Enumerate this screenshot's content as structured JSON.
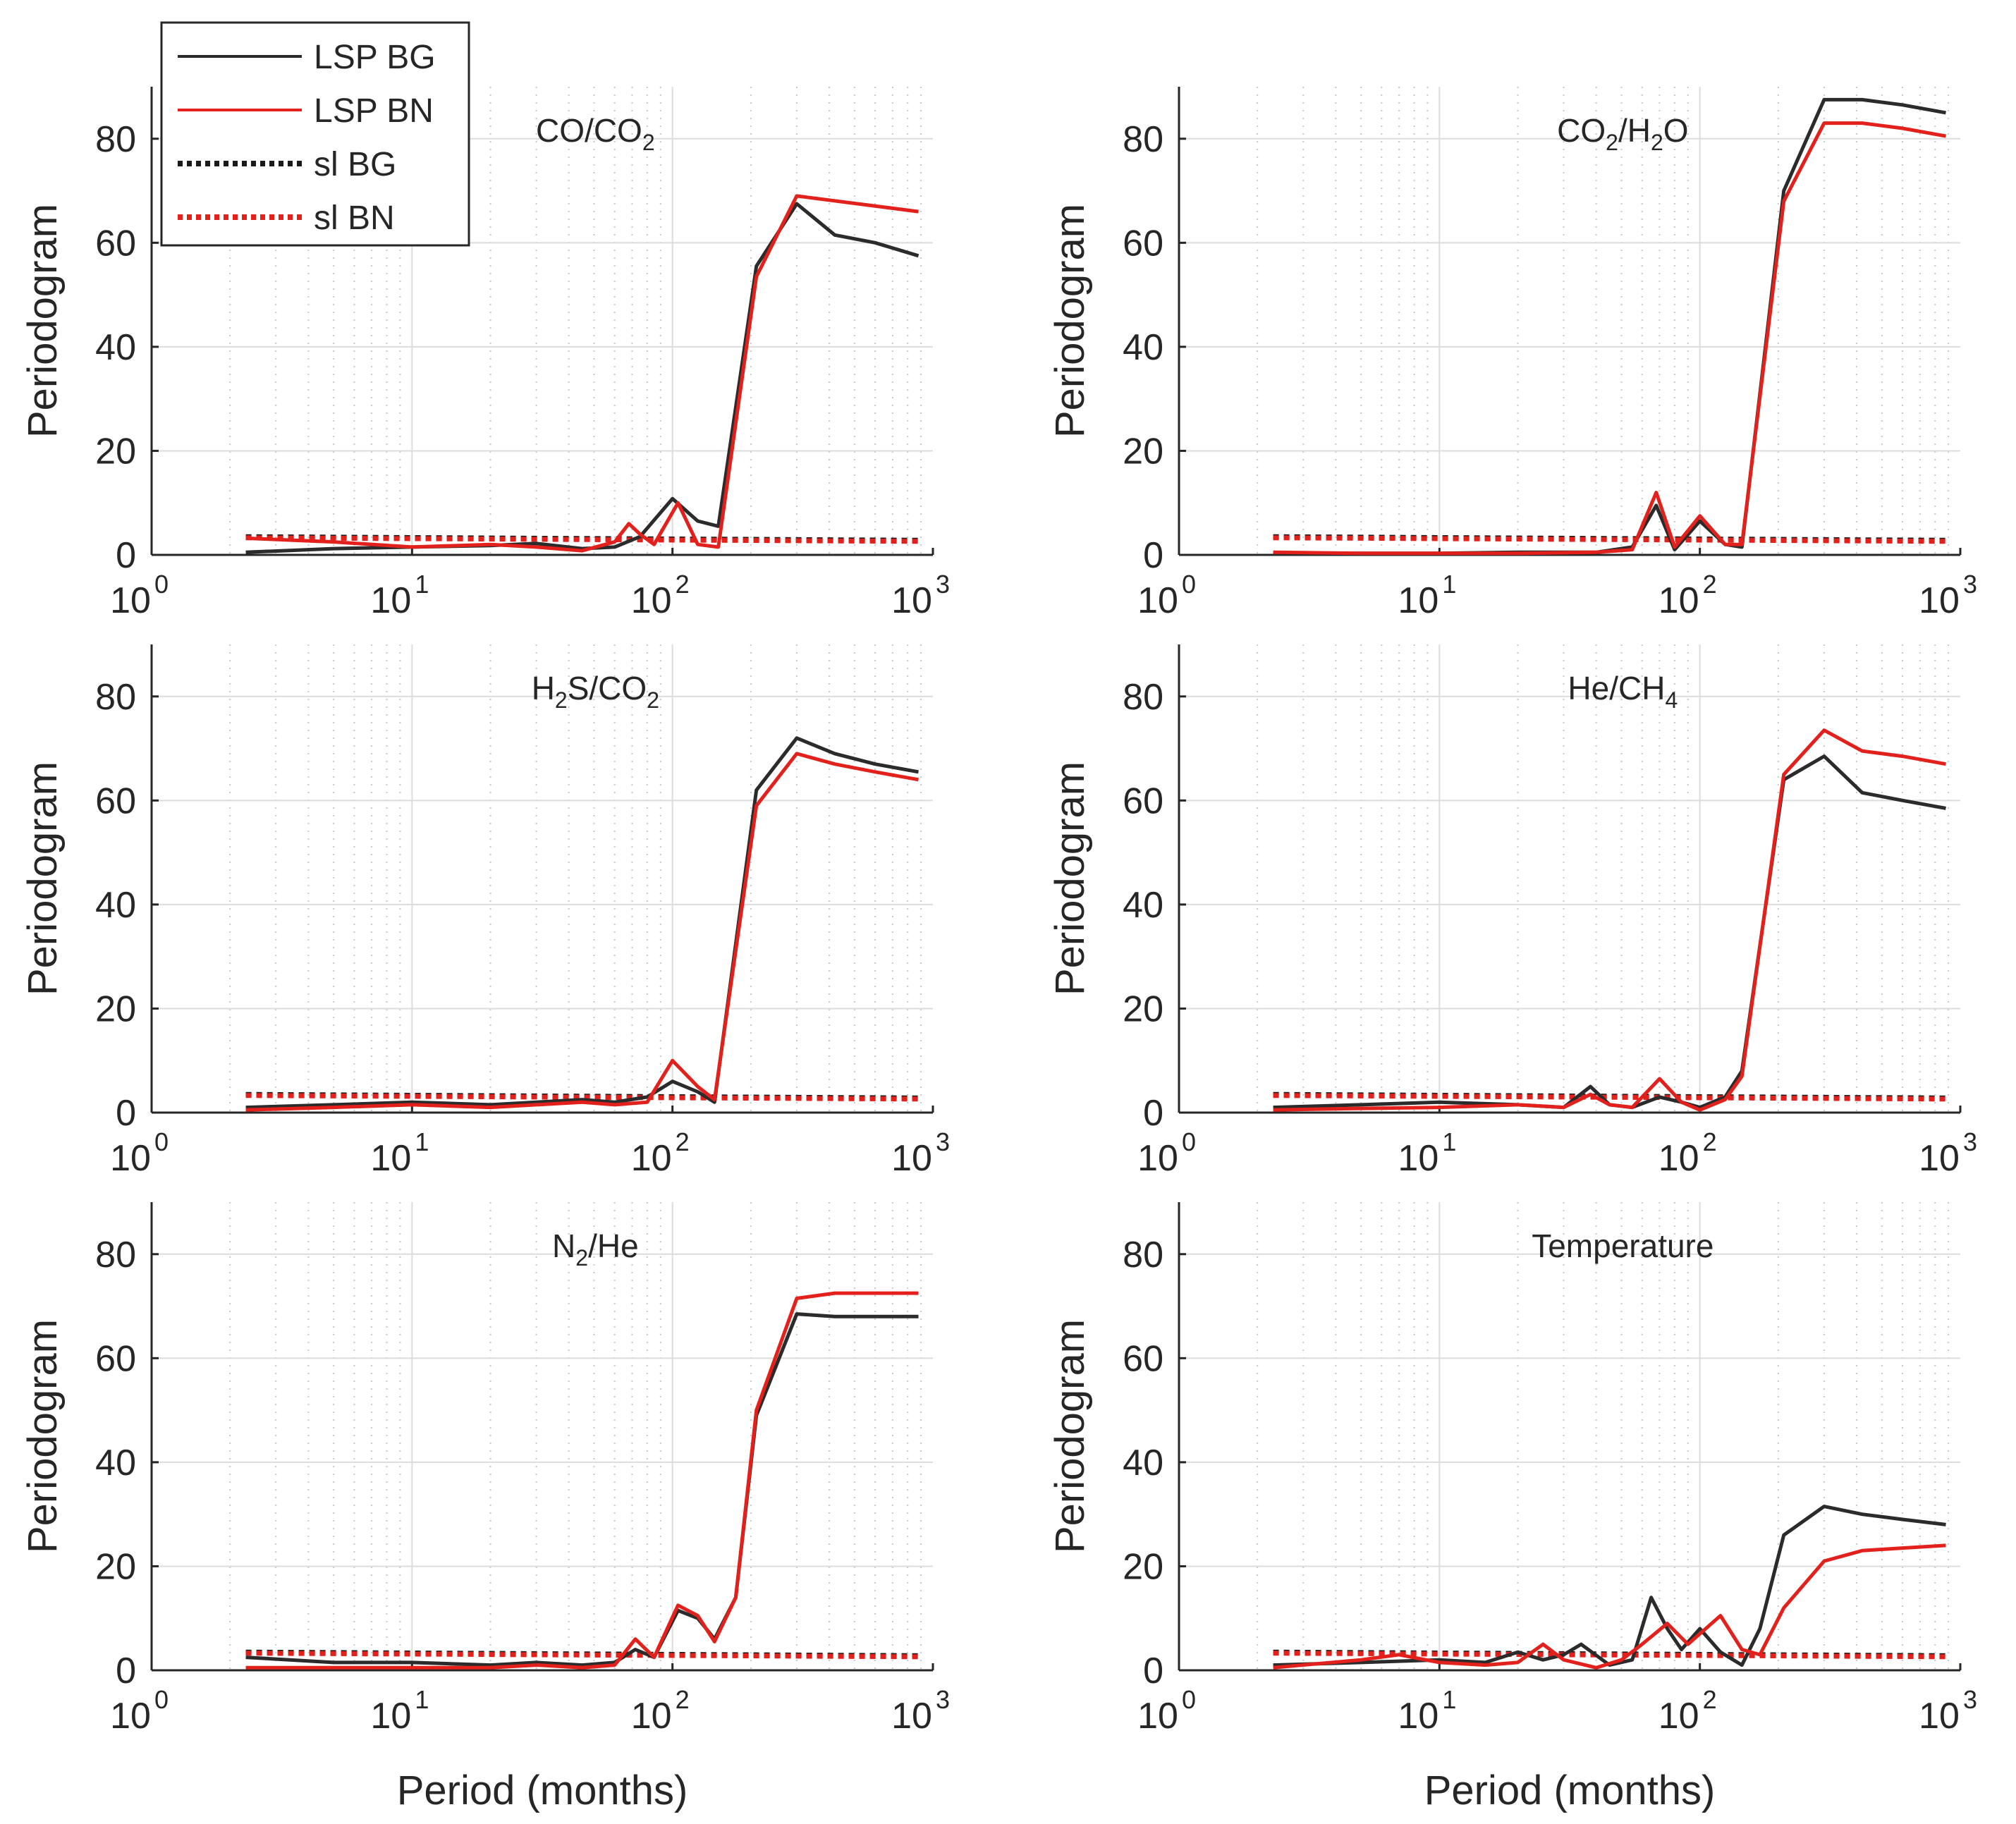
{
  "figure": {
    "xlabel": "Period (months)",
    "ylabel": "Periodogram",
    "x_tick_base": "10",
    "x_tick_exponents": [
      "0",
      "1",
      "2",
      "3"
    ],
    "y_ticks": [
      "0",
      "20",
      "40",
      "60",
      "80"
    ],
    "legend": [
      {
        "label": "LSP BG",
        "color": "#2b2b2b",
        "style": "solid"
      },
      {
        "label": "LSP BN",
        "color": "#e3211c",
        "style": "solid"
      },
      {
        "label": "sl BG",
        "color": "#1a1a1a",
        "style": "dotted"
      },
      {
        "label": "sl BN",
        "color": "#e3211c",
        "style": "dotted"
      }
    ]
  },
  "chart_data": [
    {
      "type": "line",
      "id": "co_co2",
      "title": [
        {
          "t": "CO/CO"
        },
        {
          "t": "2",
          "sub": true
        }
      ],
      "xlabel": "",
      "ylabel": "Periodogram",
      "xscale": "log",
      "xlim": [
        1,
        1000
      ],
      "ylim": [
        0,
        90
      ],
      "series": [
        {
          "name": "LSP BG",
          "x": [
            2.3,
            5,
            10,
            20,
            30,
            45,
            60,
            75,
            100,
            125,
            150,
            210,
            300,
            420,
            600,
            880
          ],
          "y": [
            0.5,
            1.2,
            1.5,
            1.8,
            2.2,
            1.2,
            1.5,
            3.5,
            10.8,
            6.5,
            5.5,
            55.5,
            67.5,
            61.5,
            60,
            57.5
          ]
        },
        {
          "name": "LSP BN",
          "x": [
            2.3,
            5,
            10,
            20,
            30,
            45,
            60,
            68,
            75,
            85,
            105,
            125,
            150,
            210,
            300,
            880
          ],
          "y": [
            3.2,
            2.5,
            1.5,
            2,
            1.5,
            0.8,
            2.5,
            6,
            4,
            2,
            10,
            2,
            1.5,
            53.5,
            69,
            66
          ]
        },
        {
          "name": "sl BG",
          "x": [
            2.3,
            880
          ],
          "y": [
            3.5,
            2.8
          ]
        },
        {
          "name": "sl BN",
          "x": [
            2.3,
            880
          ],
          "y": [
            3.3,
            2.6
          ]
        }
      ]
    },
    {
      "type": "line",
      "id": "co2_h2o",
      "title": [
        {
          "t": "CO"
        },
        {
          "t": "2",
          "sub": true
        },
        {
          "t": "/H"
        },
        {
          "t": "2",
          "sub": true
        },
        {
          "t": "O"
        }
      ],
      "xlabel": "",
      "ylabel": "Periodogram",
      "xscale": "log",
      "xlim": [
        1,
        1000
      ],
      "ylim": [
        0,
        90
      ],
      "series": [
        {
          "name": "LSP BG",
          "x": [
            2.3,
            5,
            10,
            20,
            40,
            55,
            68,
            80,
            100,
            125,
            145,
            210,
            300,
            420,
            600,
            880
          ],
          "y": [
            0.3,
            0.3,
            0.3,
            0.5,
            0.5,
            1.5,
            9.5,
            1,
            6.5,
            2,
            1.5,
            70,
            87.5,
            87.5,
            86.5,
            85
          ]
        },
        {
          "name": "LSP BN",
          "x": [
            2.3,
            5,
            10,
            20,
            40,
            55,
            68,
            80,
            100,
            125,
            145,
            210,
            300,
            420,
            600,
            880
          ],
          "y": [
            0.5,
            0.3,
            0.3,
            0.3,
            0.5,
            1,
            12,
            1.5,
            7.5,
            2,
            2,
            68,
            83,
            83,
            82,
            80.5
          ]
        },
        {
          "name": "sl BG",
          "x": [
            2.3,
            880
          ],
          "y": [
            3.5,
            2.8
          ]
        },
        {
          "name": "sl BN",
          "x": [
            2.3,
            880
          ],
          "y": [
            3.3,
            2.6
          ]
        }
      ]
    },
    {
      "type": "line",
      "id": "h2s_co2",
      "title": [
        {
          "t": "H"
        },
        {
          "t": "2",
          "sub": true
        },
        {
          "t": "S/CO"
        },
        {
          "t": "2",
          "sub": true
        }
      ],
      "xlabel": "",
      "ylabel": "Periodogram",
      "xscale": "log",
      "xlim": [
        1,
        1000
      ],
      "ylim": [
        0,
        90
      ],
      "series": [
        {
          "name": "LSP BG",
          "x": [
            2.3,
            5,
            10,
            20,
            30,
            45,
            60,
            80,
            100,
            125,
            145,
            210,
            300,
            420,
            600,
            880
          ],
          "y": [
            1,
            1.5,
            2,
            1.5,
            2,
            2.5,
            2,
            3,
            6,
            4,
            2,
            62,
            72,
            69,
            67,
            65.5
          ]
        },
        {
          "name": "LSP BN",
          "x": [
            2.3,
            5,
            10,
            20,
            30,
            45,
            60,
            80,
            100,
            125,
            145,
            210,
            300,
            420,
            600,
            880
          ],
          "y": [
            0.5,
            1,
            1.5,
            1,
            1.5,
            2,
            1.5,
            2,
            10,
            5,
            2.5,
            59,
            69,
            67,
            65.5,
            64
          ]
        },
        {
          "name": "sl BG",
          "x": [
            2.3,
            880
          ],
          "y": [
            3.5,
            2.8
          ]
        },
        {
          "name": "sl BN",
          "x": [
            2.3,
            880
          ],
          "y": [
            3.3,
            2.6
          ]
        }
      ]
    },
    {
      "type": "line",
      "id": "he_ch4",
      "title": [
        {
          "t": "He/CH"
        },
        {
          "t": "4",
          "sub": true
        }
      ],
      "xlabel": "",
      "ylabel": "Periodogram",
      "xscale": "log",
      "xlim": [
        1,
        1000
      ],
      "ylim": [
        0,
        90
      ],
      "series": [
        {
          "name": "LSP BG",
          "x": [
            2.3,
            5,
            10,
            20,
            30,
            38,
            45,
            55,
            70,
            85,
            100,
            125,
            145,
            210,
            300,
            420,
            600,
            880
          ],
          "y": [
            1,
            1.5,
            2,
            1.5,
            1,
            5,
            1.5,
            1,
            3,
            2,
            1,
            3,
            8,
            64,
            68.5,
            61.5,
            60,
            58.5
          ]
        },
        {
          "name": "LSP BN",
          "x": [
            2.3,
            5,
            10,
            20,
            30,
            38,
            45,
            55,
            70,
            85,
            100,
            125,
            145,
            210,
            300,
            420,
            600,
            880
          ],
          "y": [
            0.5,
            0.8,
            1,
            1.5,
            1,
            3.5,
            1.5,
            1,
            6.5,
            2,
            0.5,
            2.5,
            7,
            65,
            73.5,
            69.5,
            68.5,
            67
          ]
        },
        {
          "name": "sl BG",
          "x": [
            2.3,
            880
          ],
          "y": [
            3.5,
            2.8
          ]
        },
        {
          "name": "sl BN",
          "x": [
            2.3,
            880
          ],
          "y": [
            3.3,
            2.6
          ]
        }
      ]
    },
    {
      "type": "line",
      "id": "n2_he",
      "title": [
        {
          "t": "N"
        },
        {
          "t": "2",
          "sub": true
        },
        {
          "t": "/He"
        }
      ],
      "xlabel": "Period (months)",
      "ylabel": "Periodogram",
      "xscale": "log",
      "xlim": [
        1,
        1000
      ],
      "ylim": [
        0,
        90
      ],
      "series": [
        {
          "name": "LSP BG",
          "x": [
            2.3,
            5,
            10,
            20,
            30,
            45,
            60,
            72,
            85,
            105,
            125,
            145,
            175,
            210,
            300,
            420,
            600,
            880
          ],
          "y": [
            2.5,
            1.5,
            1.5,
            1,
            1.5,
            1,
            1.5,
            4,
            2.5,
            11.5,
            10,
            6,
            14,
            49,
            68.5,
            68,
            68,
            68
          ]
        },
        {
          "name": "LSP BN",
          "x": [
            2.3,
            5,
            10,
            20,
            30,
            45,
            60,
            72,
            85,
            105,
            125,
            145,
            175,
            210,
            300,
            420,
            600,
            880
          ],
          "y": [
            0.5,
            0.5,
            0.5,
            0.5,
            1,
            0.5,
            1,
            6,
            2.5,
            12.5,
            10.5,
            5.5,
            14,
            50,
            71.5,
            72.5,
            72.5,
            72.5
          ]
        },
        {
          "name": "sl BG",
          "x": [
            2.3,
            880
          ],
          "y": [
            3.5,
            2.8
          ]
        },
        {
          "name": "sl BN",
          "x": [
            2.3,
            880
          ],
          "y": [
            3.3,
            2.6
          ]
        }
      ]
    },
    {
      "type": "line",
      "id": "temperature",
      "title": [
        {
          "t": "Temperature"
        }
      ],
      "xlabel": "Period (months)",
      "ylabel": "Periodogram",
      "xscale": "log",
      "xlim": [
        1,
        1000
      ],
      "ylim": [
        0,
        90
      ],
      "series": [
        {
          "name": "LSP BG",
          "x": [
            2.3,
            5,
            10,
            15,
            20,
            25,
            30,
            35,
            45,
            55,
            65,
            75,
            85,
            100,
            120,
            145,
            170,
            210,
            300,
            420,
            600,
            880
          ],
          "y": [
            1,
            1.5,
            2,
            1.5,
            3.5,
            2,
            3,
            5,
            1,
            2,
            14,
            8,
            4,
            8,
            3.5,
            1,
            8,
            26,
            31.5,
            30,
            29,
            28
          ]
        },
        {
          "name": "LSP BN",
          "x": [
            2.3,
            5,
            7,
            10,
            15,
            20,
            25,
            30,
            40,
            50,
            60,
            75,
            90,
            120,
            145,
            170,
            210,
            300,
            420,
            600,
            880
          ],
          "y": [
            0.5,
            2,
            3,
            1.5,
            1,
            1.5,
            5,
            2,
            0.5,
            2,
            5,
            9,
            5,
            10.5,
            4,
            3,
            12,
            21,
            23,
            23.5,
            24
          ]
        },
        {
          "name": "sl BG",
          "x": [
            2.3,
            880
          ],
          "y": [
            3.5,
            2.8
          ]
        },
        {
          "name": "sl BN",
          "x": [
            2.3,
            880
          ],
          "y": [
            3.3,
            2.6
          ]
        }
      ]
    }
  ]
}
